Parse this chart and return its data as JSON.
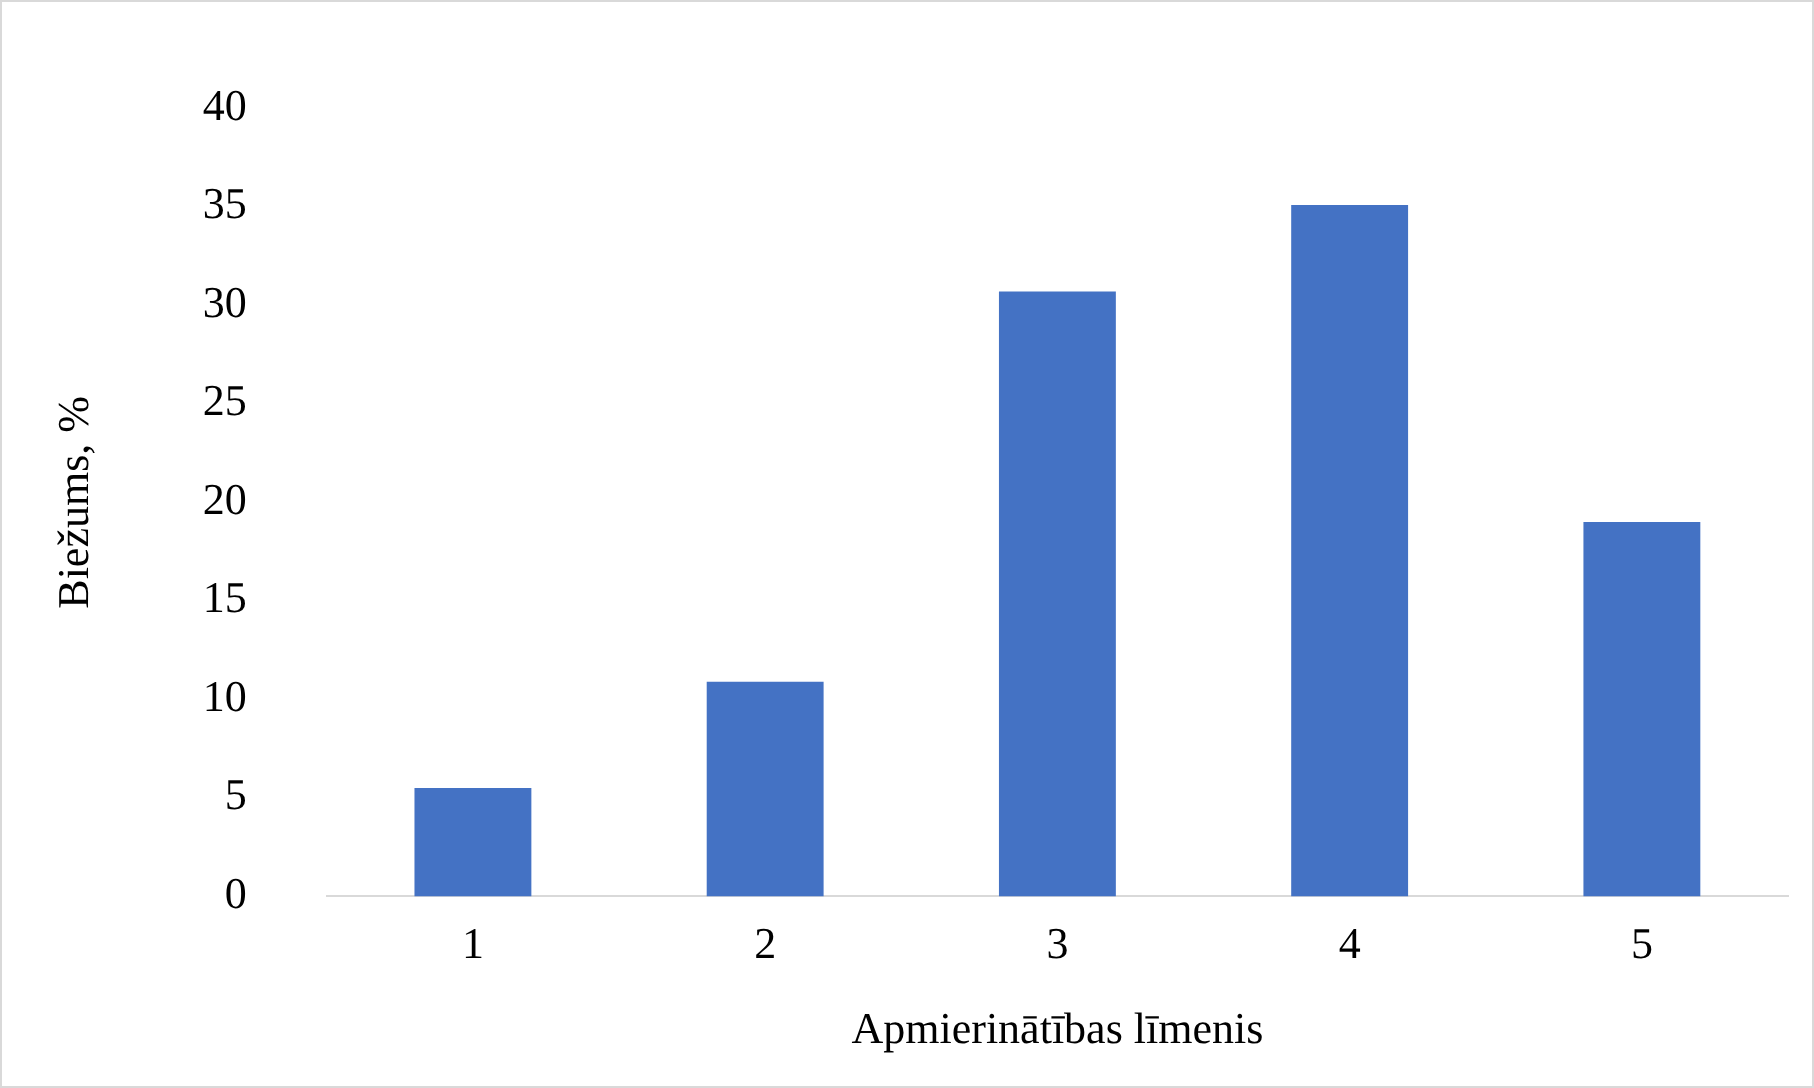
{
  "chart_data": {
    "type": "bar",
    "xlabel": "Apmierinātības līmenis",
    "ylabel": "Biežums, %",
    "categories": [
      "1",
      "2",
      "3",
      "4",
      "5"
    ],
    "values": [
      5.5,
      10.9,
      30.7,
      35.1,
      19.0
    ],
    "color": "#4472c4",
    "ylim": [
      0,
      40
    ],
    "yticks": [
      0,
      5,
      10,
      15,
      20,
      25,
      30,
      35,
      40
    ],
    "grid": false,
    "legend": false
  }
}
